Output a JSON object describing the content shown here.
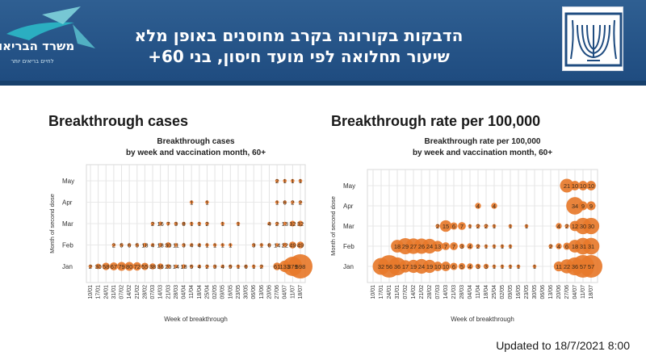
{
  "header": {
    "title_line1": "הדבקות בקורונה בקרב מחוסנים באופן מלא",
    "title_line2": "שיעור תחלואה לפי מועד חיסון, בני 60+",
    "ministry_logo_text": "משרד הבריאות",
    "ministry_logo_tagline": "לחיים בריאים יותר"
  },
  "colors": {
    "header_bg": "#24548a",
    "bubble": "#e7792b",
    "accent": "#2bb8c6"
  },
  "sections": {
    "cases_title": "Breakthrough cases",
    "rate_title": "Breakthrough rate per 100,000"
  },
  "footer": {
    "updated": "Updated to 18/7/2021 8:00"
  },
  "chart_data": [
    {
      "type": "scatter",
      "subtype": "bubble",
      "title": "Breakthrough cases",
      "subtitle": "by week and vaccination month, 60+",
      "xlabel": "Week of breakthrough",
      "ylabel": "Month of second dose",
      "x": [
        "10/01",
        "17/01",
        "24/01",
        "31/01",
        "07/02",
        "14/02",
        "21/02",
        "28/02",
        "07/03",
        "14/03",
        "21/03",
        "28/03",
        "04/04",
        "11/04",
        "18/04",
        "25/04",
        "02/05",
        "09/05",
        "16/05",
        "23/05",
        "30/05",
        "06/06",
        "13/06",
        "20/06",
        "27/06",
        "04/07",
        "11/07",
        "18/07"
      ],
      "y": [
        "Jan",
        "Feb",
        "Mar",
        "Apr",
        "May"
      ],
      "grid": true,
      "series": [
        {
          "name": "Jan",
          "values": [
            2,
            30,
            58,
            67,
            79,
            80,
            72,
            55,
            38,
            36,
            20,
            14,
            18,
            5,
            4,
            2,
            3,
            4,
            5,
            1,
            6,
            1,
            2,
            0,
            61,
            133,
            379,
            598
          ]
        },
        {
          "name": "Feb",
          "values": [
            0,
            0,
            0,
            2,
            5,
            6,
            5,
            18,
            4,
            18,
            30,
            11,
            3,
            4,
            4,
            1,
            1,
            1,
            1,
            0,
            0,
            3,
            1,
            6,
            14,
            22,
            49,
            49
          ]
        },
        {
          "name": "Mar",
          "values": [
            0,
            0,
            0,
            0,
            0,
            0,
            0,
            0,
            2,
            16,
            7,
            3,
            8,
            1,
            1,
            2,
            0,
            1,
            0,
            1,
            0,
            0,
            0,
            4,
            2,
            13,
            32,
            32
          ]
        },
        {
          "name": "Apr",
          "values": [
            0,
            0,
            0,
            0,
            0,
            0,
            0,
            0,
            0,
            0,
            0,
            0,
            0,
            1,
            0,
            1,
            0,
            0,
            0,
            0,
            0,
            0,
            0,
            0,
            1,
            6,
            2,
            2
          ]
        },
        {
          "name": "May",
          "values": [
            0,
            0,
            0,
            0,
            0,
            0,
            0,
            0,
            0,
            0,
            0,
            0,
            0,
            0,
            0,
            0,
            0,
            0,
            0,
            0,
            0,
            0,
            0,
            0,
            2,
            1,
            1,
            1
          ]
        }
      ]
    },
    {
      "type": "scatter",
      "subtype": "bubble",
      "title": "Breakthrough rate per 100,000",
      "subtitle": "by week and vaccination month, 60+",
      "xlabel": "Week of breakthrough",
      "ylabel": "Month of second dose",
      "x": [
        "10/01",
        "17/01",
        "24/01",
        "31/01",
        "07/02",
        "14/02",
        "21/02",
        "28/02",
        "07/03",
        "14/03",
        "21/03",
        "28/03",
        "04/04",
        "11/04",
        "18/04",
        "25/04",
        "02/05",
        "09/05",
        "16/05",
        "23/05",
        "30/05",
        "06/06",
        "13/06",
        "20/06",
        "27/06",
        "04/07",
        "11/07",
        "18/07"
      ],
      "y": [
        "Jan",
        "Feb",
        "Mar",
        "Apr",
        "May"
      ],
      "grid": true,
      "series": [
        {
          "name": "Jan",
          "values": [
            0,
            32,
            56,
            36,
            17,
            19,
            24,
            19,
            10,
            10,
            6,
            5,
            4,
            3,
            3,
            1,
            1,
            1,
            1,
            0,
            1,
            0,
            0,
            11,
            22,
            36,
            57,
            57
          ]
        },
        {
          "name": "Feb",
          "values": [
            0,
            0,
            0,
            18,
            29,
            27,
            26,
            24,
            13,
            7,
            7,
            3,
            4,
            2,
            1,
            1,
            1,
            1,
            0,
            0,
            0,
            0,
            2,
            4,
            6,
            18,
            31,
            31
          ]
        },
        {
          "name": "Mar",
          "values": [
            0,
            0,
            0,
            0,
            0,
            0,
            0,
            0,
            2,
            15,
            6,
            7,
            1,
            2,
            2,
            1,
            0,
            1,
            0,
            1,
            0,
            0,
            0,
            4,
            2,
            12,
            30,
            30
          ]
        },
        {
          "name": "Apr",
          "values": [
            0,
            0,
            0,
            0,
            0,
            0,
            0,
            0,
            0,
            0,
            0,
            0,
            0,
            4,
            0,
            4,
            0,
            0,
            0,
            0,
            0,
            0,
            0,
            0,
            0,
            34,
            9,
            9
          ]
        },
        {
          "name": "May",
          "values": [
            0,
            0,
            0,
            0,
            0,
            0,
            0,
            0,
            0,
            0,
            0,
            0,
            0,
            0,
            0,
            0,
            0,
            0,
            0,
            0,
            0,
            0,
            0,
            0,
            21,
            10,
            10,
            10
          ]
        }
      ]
    }
  ]
}
